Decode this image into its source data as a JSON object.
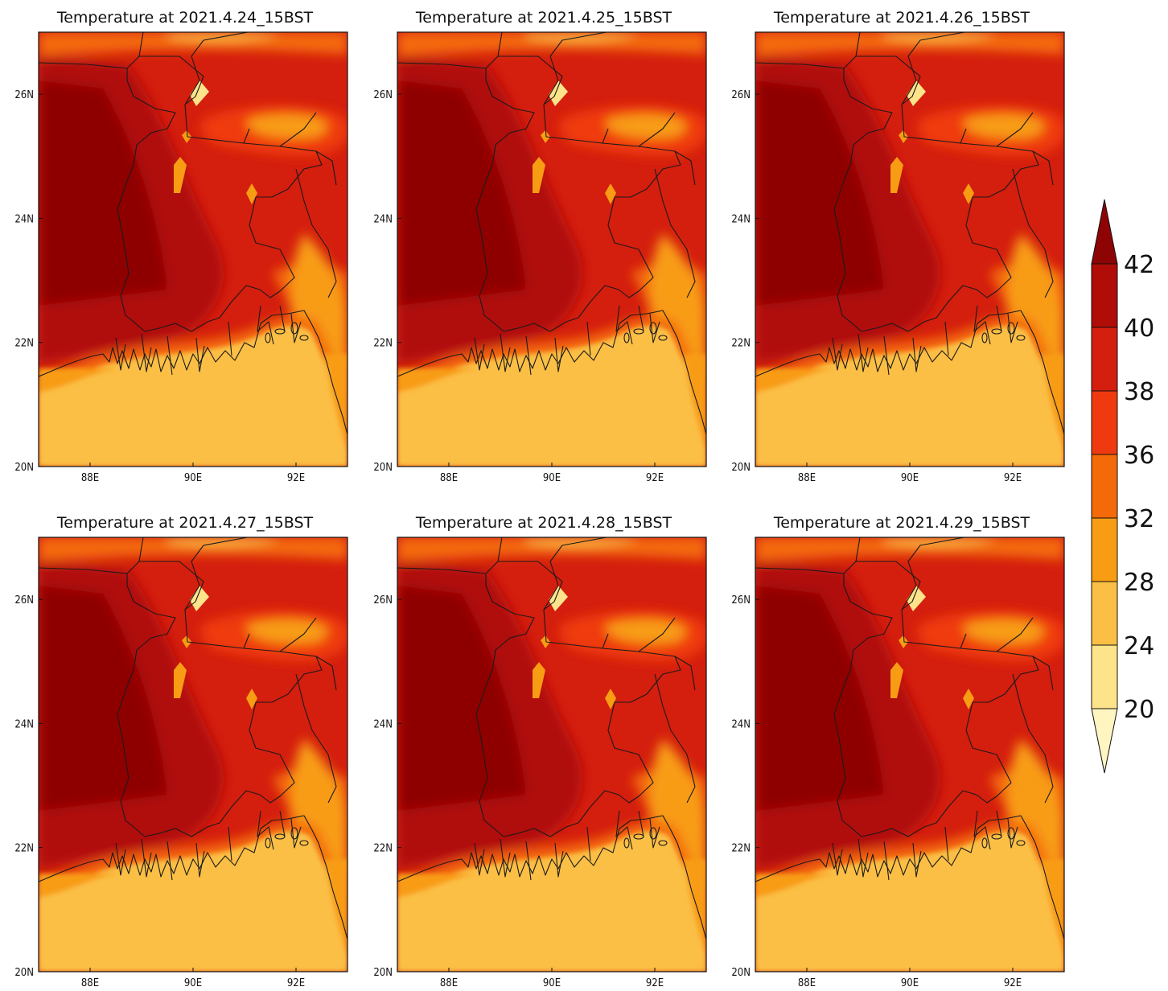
{
  "panels": [
    {
      "title": "Temperature at 2021.4.24_15BST"
    },
    {
      "title": "Temperature at 2021.4.25_15BST"
    },
    {
      "title": "Temperature at 2021.4.26_15BST"
    },
    {
      "title": "Temperature at 2021.4.27_15BST"
    },
    {
      "title": "Temperature at 2021.4.28_15BST"
    },
    {
      "title": "Temperature at 2021.4.29_15BST"
    }
  ],
  "axes": {
    "lon_ticks": [
      {
        "value": 88,
        "label": "88E"
      },
      {
        "value": 90,
        "label": "90E"
      },
      {
        "value": 92,
        "label": "92E"
      }
    ],
    "lat_ticks": [
      {
        "value": 20,
        "label": "20N"
      },
      {
        "value": 22,
        "label": "22N"
      },
      {
        "value": 24,
        "label": "24N"
      },
      {
        "value": 26,
        "label": "26N"
      }
    ],
    "lon_range": [
      87,
      93
    ],
    "lat_range": [
      20,
      27
    ]
  },
  "colorbar": {
    "levels": [
      20,
      24,
      28,
      32,
      36,
      38,
      40,
      42
    ],
    "colors": [
      "#fff5c0",
      "#fde38a",
      "#fbbf45",
      "#f89c14",
      "#f46a08",
      "#ef3a10",
      "#d41e0e",
      "#b00d08",
      "#8e0404"
    ],
    "extend": "both"
  }
}
